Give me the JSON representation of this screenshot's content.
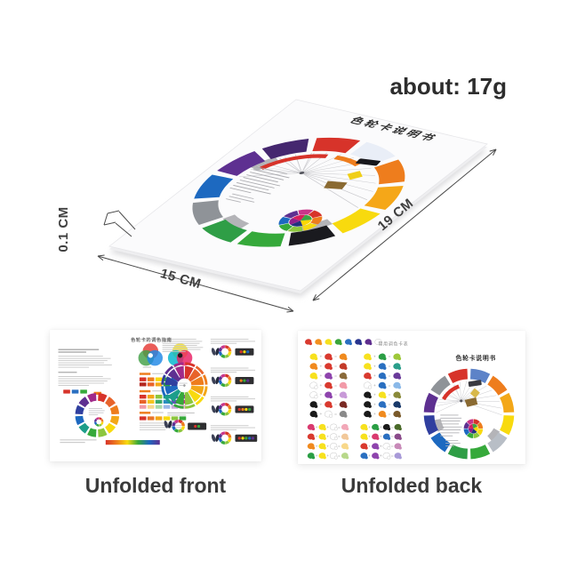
{
  "annotations": {
    "weight": "about: 17g",
    "thickness": "0.1 CM",
    "width": "15 CM",
    "length": "19 CM"
  },
  "captions": {
    "front": "Unfolded front",
    "back": "Unfolded back"
  },
  "card": {
    "title": "色轮卡说明书",
    "wheel_colors": [
      "#e9eef7",
      "#ee7d1d",
      "#f5a718",
      "#f8da0e",
      "#1a1a1f",
      "#36a93b",
      "#2f9e46",
      "#8f9398",
      "#1d69c0",
      "#5e3091",
      "#45276f",
      "#d7332a"
    ],
    "donut_colors": [
      "#d7332a",
      "#ee7d1d",
      "#f8da0e",
      "#8cc63e",
      "#36a93b",
      "#1d69c0",
      "#5e3091",
      "#c9358a"
    ],
    "pie_colors": [
      "#ffd800",
      "#20317e",
      "#8e1f8c",
      "#d81e5b",
      "#3aa545"
    ],
    "swatch_black": "#17171c",
    "swatch_yellow": "#f0cf18",
    "swatch_brown": "#8a6a32"
  },
  "front": {
    "title": "色轮卡的调色指南",
    "wheel_colors": [
      "#d7332a",
      "#e8632a",
      "#ee7d1d",
      "#f3a718",
      "#f8da0e",
      "#8cc63e",
      "#36a93b",
      "#1d9e8a",
      "#1d69c0",
      "#303f9f",
      "#5e3091",
      "#a02a8a"
    ],
    "venn_rgb": [
      "#e53935",
      "#43a047",
      "#1e88e5"
    ],
    "venn_cmy": [
      "#f5e01e",
      "#00b5cc",
      "#e91e63"
    ],
    "small_chips": [
      "#d7332a",
      "#2a6fc0",
      "#36a93b"
    ],
    "swatch_groups": [
      {
        "rows": [
          [
            "#d7332a",
            "#ee7d1d",
            "#f8da0e",
            "#36a93b",
            "#1d69c0",
            "#5e3091"
          ],
          [
            "#b3271f",
            "#e8632a",
            "#f3a718",
            "#2f9e46",
            "#303f9f",
            "#45276f"
          ]
        ]
      },
      {
        "rows": [
          [
            "#d7332a",
            "#f3a718",
            "#8cc63e",
            "#1d9e8a",
            "#3a5fc0",
            "#8a3b9e"
          ],
          [
            "#e8632a",
            "#f5c51e",
            "#3aa86a",
            "#2a8fc0",
            "#6a4ac0",
            "#c9358a"
          ],
          [
            "#f29aa8",
            "#f8d88a",
            "#a8d8a8",
            "#9ab8e8",
            "#c8a8d8",
            "#e8b8c8"
          ]
        ]
      },
      {
        "rows": [
          [
            "#d7332a",
            "#e8732a",
            "#f3a718",
            "#f8da0e",
            "#8cc63e",
            "#36a93b"
          ]
        ]
      }
    ],
    "gradient": [
      "#d7332a",
      "#ee7d1d",
      "#f8da0e",
      "#36a93b",
      "#1d69c0",
      "#5e3091"
    ],
    "chip_groups": [
      [
        "#d7332a",
        "#36a93b"
      ],
      [
        "#d7332a",
        "#f8da0e",
        "#1d69c0"
      ],
      [
        "#ee7d1d",
        "#36a93b",
        "#5e3091"
      ],
      [
        "#d7332a",
        "#ee7d1d",
        "#f8da0e",
        "#36a93b"
      ],
      [
        "#d7332a",
        "#f8da0e",
        "#36a93b",
        "#1d69c0",
        "#5e3091"
      ]
    ]
  },
  "back": {
    "grid_title": "常用调色卡表",
    "wheel_title": "色轮卡说明书",
    "plus": "+",
    "equals": "=",
    "header_blobs": [
      "#d93a2f",
      "#f2901e",
      "#f5e01e",
      "#3aa53a",
      "#2a6fc0",
      "#28348e",
      "#5e2d8e",
      "#ffffff"
    ],
    "wheel_colors": [
      "#5d83c8",
      "#ee7d1d",
      "#f3a718",
      "#f8da0e",
      "#b8bec6",
      "#36a93b",
      "#2f9e46",
      "#1d69c0",
      "#303f9f",
      "#5e3091",
      "#8f9398",
      "#d7332a"
    ],
    "mix3": [
      [
        [
          "#f7e11e",
          "#d93a2f",
          "#f08a1e"
        ],
        [
          "#f7e11e",
          "#2a9e44",
          "#9ec83a"
        ]
      ],
      [
        [
          "#f08a1e",
          "#d93a2f",
          "#c33a28"
        ],
        [
          "#f7e11e",
          "#2a6fc0",
          "#2a9e8a"
        ]
      ],
      [
        [
          "#f7e11e",
          "#8e44ad",
          "#8a6a3a"
        ],
        [
          "#d93a2f",
          "#2a6fc0",
          "#6a3b9a"
        ]
      ],
      [
        [
          "#ffffff",
          "#d93a2f",
          "#f29aa8"
        ],
        [
          "#ffffff",
          "#2a6fc0",
          "#8ab8e8"
        ]
      ],
      [
        [
          "#ffffff",
          "#8e44ad",
          "#c89ad8"
        ],
        [
          "#1a1a1a",
          "#f7e11e",
          "#8a8a3a"
        ]
      ],
      [
        [
          "#1a1a1a",
          "#d93a2f",
          "#7a2a24"
        ],
        [
          "#1a1a1a",
          "#2a6fc0",
          "#1a3a6a"
        ]
      ],
      [
        [
          "#1a1a1a",
          "#ffffff",
          "#8a8a8a"
        ],
        [
          "#1a1a1a",
          "#f08a1e",
          "#7a5a2a"
        ]
      ]
    ],
    "mix4": [
      [
        [
          "#d93a6f",
          "#f7e11e",
          "#ffffff",
          "#f2a8b8"
        ],
        [
          "#f7e11e",
          "#2a9e44",
          "#1a1a1a",
          "#4a6a2a"
        ]
      ],
      [
        [
          "#d93a2f",
          "#f7e11e",
          "#ffffff",
          "#f2c89a"
        ],
        [
          "#f7e11e",
          "#d93a6f",
          "#2a6fc0",
          "#8a4a8a"
        ]
      ],
      [
        [
          "#f08a1e",
          "#f7e11e",
          "#ffffff",
          "#f8d88a"
        ],
        [
          "#d93a2f",
          "#8e44ad",
          "#ffffff",
          "#c88ab8"
        ]
      ],
      [
        [
          "#2a9e44",
          "#f7e11e",
          "#ffffff",
          "#b8d88a"
        ],
        [
          "#2a6fc0",
          "#8e44ad",
          "#ffffff",
          "#a89ad8"
        ]
      ]
    ]
  }
}
